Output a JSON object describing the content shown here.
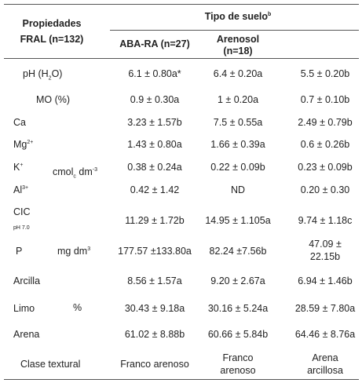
{
  "header": {
    "col0_line1": "Propiedades",
    "col0_line2": "FRAL (n=132)",
    "group_title": "Tipo de suelo",
    "group_title_sup": "b",
    "col1": "ABA-RA (n=27)",
    "col2_line1": "Arenosol",
    "col2_line2": "(n=18)"
  },
  "rows": {
    "ph": {
      "label_pre": "pH (H",
      "label_sub": "2",
      "label_post": "O)",
      "v1": "6.1 ± 0.80a*",
      "v2": "6.4 ± 0.20a",
      "v3": "5.5 ± 0.20b"
    },
    "mo": {
      "label": "MO (%)",
      "v1": "0.9 ± 0.30a",
      "v2": "1 ± 0.20a",
      "v3": "0.7 ± 0.10b"
    },
    "ca": {
      "label": "Ca",
      "v1": "3.23 ± 1.57b",
      "v2": "7.5 ± 0.55a",
      "v3": "2.49 ± 0.79b"
    },
    "mg": {
      "label": "Mg",
      "label_sup": "2+",
      "v1": "1.43 ± 0.80a",
      "v2": "1.66 ± 0.39a",
      "v3": "0.6 ± 0.26b"
    },
    "k": {
      "label": "K",
      "label_sup": "+",
      "v1": "0.38 ± 0.24a",
      "v2": "0.22 ± 0.09b",
      "v3": "0.23 ± 0.09b"
    },
    "al": {
      "label": "Al",
      "label_sup": "3+",
      "v1": "0.42 ± 1.42",
      "v2": "ND",
      "v3": "0.20 ± 0.30"
    },
    "cic": {
      "label": "CIC",
      "label_sub": "pH 7.0",
      "v1": "11.29 ± 1.72b",
      "v2": "14.95 ± 1.105a",
      "v3": "9.74 ± 1.18c"
    },
    "p": {
      "label": "P",
      "unit_pre": "mg dm",
      "unit_sup": "3",
      "v1": "177.57 ±133.80a",
      "v2": "82.24 ±7.56b",
      "v3_line1": "47.09 ±",
      "v3_line2": "22.15b"
    },
    "arcilla": {
      "label": "Arcilla",
      "v1": "8.56 ± 1.57a",
      "v2": "9.20 ± 2.67a",
      "v3": "6.94 ± 1.46b"
    },
    "limo": {
      "label": "Limo",
      "unit": "%",
      "v1": "30.43 ± 9.18a",
      "v2": "30.16 ± 5.24a",
      "v3": "28.59 ± 7.80a"
    },
    "arena": {
      "label": "Arena",
      "v1": "61.02 ± 8.88b",
      "v2": "60.66 ± 5.84b",
      "v3": "64.46 ± 8.76a"
    },
    "clase": {
      "label": "Clase textural",
      "v1": "Franco arenoso",
      "v2_line1": "Franco",
      "v2_line2": "arenoso",
      "v3_line1": "Arena",
      "v3_line2": "arcillosa"
    }
  },
  "cmol_unit": {
    "pre": "cmol",
    "sub": "c",
    "mid": "dm",
    "sup": "-3"
  }
}
